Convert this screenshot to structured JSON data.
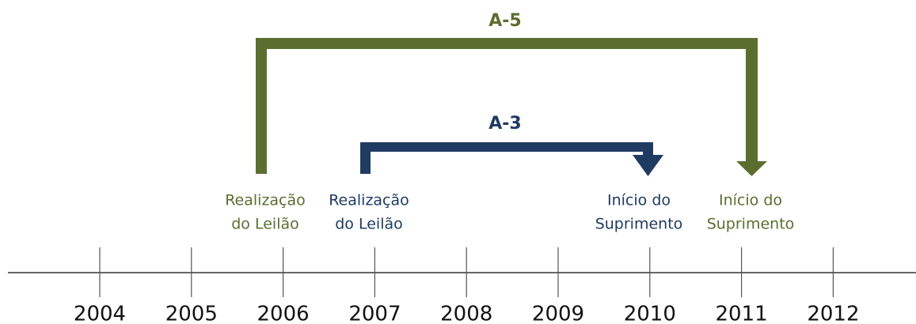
{
  "timeline": {
    "years": [
      "2004",
      "2005",
      "2006",
      "2007",
      "2008",
      "2009",
      "2010",
      "2011",
      "2012"
    ]
  },
  "brackets": [
    {
      "label": "A-5",
      "start": [
        "Realização",
        "do Leilão"
      ],
      "end": [
        "Início do",
        "Suprimento"
      ]
    },
    {
      "label": "A-3",
      "start": [
        "Realização",
        "do Leilão"
      ],
      "end": [
        "Início do",
        "Suprimento"
      ]
    }
  ]
}
